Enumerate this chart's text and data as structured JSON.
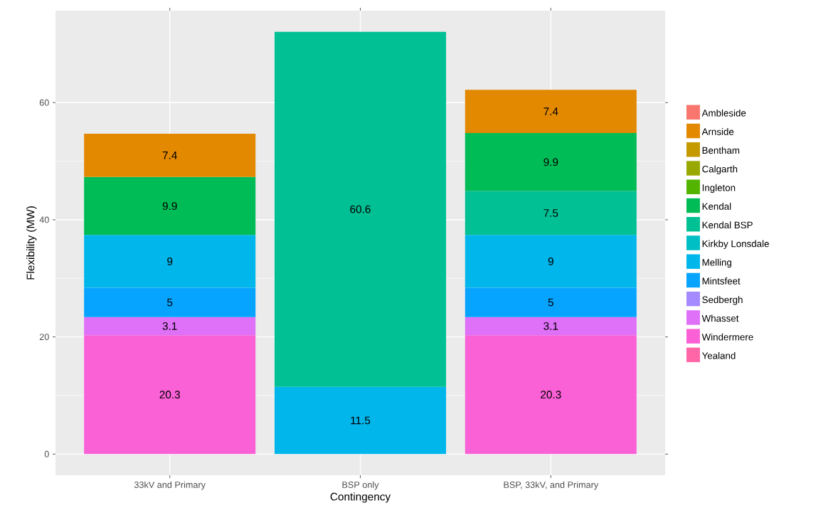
{
  "chart_data": {
    "type": "bar",
    "stacked": true,
    "xlabel": "Contingency",
    "ylabel": "Flexibility (MW)",
    "categories": [
      "33kV and Primary",
      "BSP only",
      "BSP, 33kV, and Primary"
    ],
    "ylim": [
      -3.6,
      75.7
    ],
    "yticks": [
      0,
      20,
      40,
      60
    ],
    "grid": true,
    "legend": "right",
    "data_labels": true,
    "series": [
      {
        "name": "Yealand",
        "color": "#FF66A8",
        "values": [
          null,
          null,
          null
        ]
      },
      {
        "name": "Windermere",
        "color": "#FB61D7",
        "values": [
          20.3,
          null,
          20.3
        ]
      },
      {
        "name": "Whasset",
        "color": "#DF70F8",
        "values": [
          3.1,
          null,
          3.1
        ]
      },
      {
        "name": "Sedbergh",
        "color": "#A58AFF",
        "values": [
          null,
          null,
          null
        ]
      },
      {
        "name": "Mintsfeet",
        "color": "#06A4FF",
        "values": [
          5,
          null,
          5
        ]
      },
      {
        "name": "Melling",
        "color": "#00B6EB",
        "values": [
          9,
          11.5,
          9
        ]
      },
      {
        "name": "Kirkby Lonsdale",
        "color": "#00BFC4",
        "values": [
          null,
          null,
          null
        ]
      },
      {
        "name": "Kendal BSP",
        "color": "#00C094",
        "values": [
          null,
          60.6,
          7.5
        ]
      },
      {
        "name": "Kendal",
        "color": "#00BC56",
        "values": [
          9.9,
          null,
          9.9
        ]
      },
      {
        "name": "Ingleton",
        "color": "#53B400",
        "values": [
          null,
          null,
          null
        ]
      },
      {
        "name": "Calgarth",
        "color": "#99A800",
        "values": [
          null,
          null,
          null
        ]
      },
      {
        "name": "Bentham",
        "color": "#C49A00",
        "values": [
          null,
          null,
          null
        ]
      },
      {
        "name": "Arnside",
        "color": "#E38900",
        "values": [
          7.4,
          null,
          7.4
        ]
      },
      {
        "name": "Ambleside",
        "color": "#F8766D",
        "values": [
          null,
          null,
          null
        ]
      }
    ]
  }
}
